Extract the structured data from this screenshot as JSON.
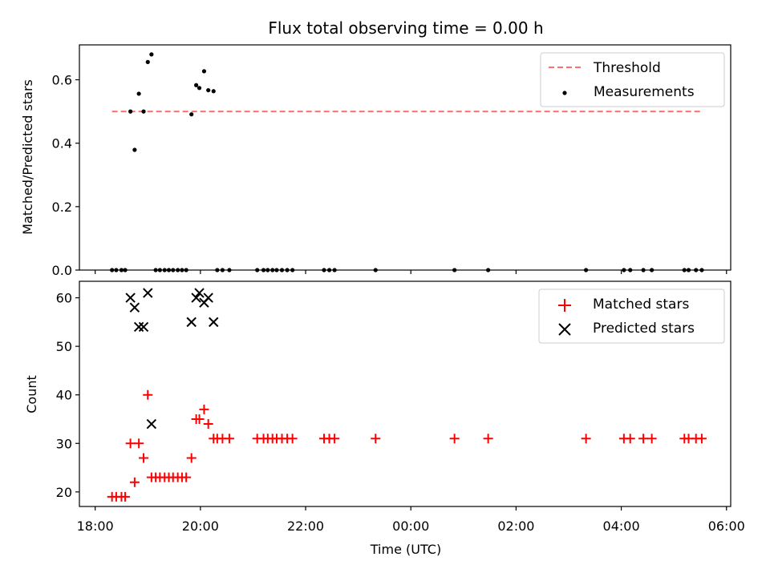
{
  "title": "Flux total observing time = 0.00 h",
  "chart_data": [
    {
      "type": "scatter",
      "ylabel": "Matched/Predicted stars",
      "ylim": [
        0,
        0.71
      ],
      "yticks": [
        "0.0",
        "0.2",
        "0.4",
        "0.6"
      ],
      "ytick_values": [
        0.0,
        0.2,
        0.4,
        0.6
      ],
      "legend_position": "top-right",
      "legend": [
        "Threshold",
        "Measurements"
      ],
      "colors": {
        "threshold": "#ff6f6f",
        "measurements": "#000000"
      },
      "threshold": {
        "name": "Threshold",
        "y": 0.5,
        "x_start": 18.32,
        "x_end": 29.55
      },
      "series": [
        {
          "name": "Measurements",
          "points": [
            [
              18.32,
              0
            ],
            [
              18.4,
              0
            ],
            [
              18.5,
              0
            ],
            [
              18.57,
              0
            ],
            [
              18.67,
              0.5
            ],
            [
              18.75,
              0.379
            ],
            [
              18.83,
              0.556
            ],
            [
              18.92,
              0.5
            ],
            [
              19.0,
              0.656
            ],
            [
              19.07,
              0.68
            ],
            [
              19.15,
              0
            ],
            [
              19.23,
              0
            ],
            [
              19.32,
              0
            ],
            [
              19.4,
              0
            ],
            [
              19.48,
              0
            ],
            [
              19.57,
              0
            ],
            [
              19.65,
              0
            ],
            [
              19.73,
              0
            ],
            [
              19.83,
              0.491
            ],
            [
              19.92,
              0.583
            ],
            [
              19.98,
              0.574
            ],
            [
              20.07,
              0.627
            ],
            [
              20.15,
              0.567
            ],
            [
              20.25,
              0.564
            ],
            [
              20.32,
              0
            ],
            [
              20.42,
              0
            ],
            [
              20.55,
              0
            ],
            [
              21.08,
              0
            ],
            [
              21.2,
              0
            ],
            [
              21.28,
              0
            ],
            [
              21.37,
              0
            ],
            [
              21.45,
              0
            ],
            [
              21.55,
              0
            ],
            [
              21.65,
              0
            ],
            [
              21.75,
              0
            ],
            [
              22.35,
              0
            ],
            [
              22.45,
              0
            ],
            [
              22.55,
              0
            ],
            [
              23.33,
              0
            ],
            [
              24.83,
              0
            ],
            [
              25.47,
              0
            ],
            [
              27.33,
              0
            ],
            [
              28.05,
              0
            ],
            [
              28.17,
              0
            ],
            [
              28.42,
              0
            ],
            [
              28.58,
              0
            ],
            [
              29.2,
              0
            ],
            [
              29.28,
              0
            ],
            [
              29.42,
              0
            ],
            [
              29.53,
              0
            ]
          ]
        }
      ]
    },
    {
      "type": "scatter",
      "xlabel": "Time (UTC)",
      "ylabel": "Count",
      "xlim": [
        17.7,
        30.08
      ],
      "ylim": [
        17,
        63.4
      ],
      "xticks": [
        "18:00",
        "20:00",
        "22:00",
        "00:00",
        "02:00",
        "04:00",
        "06:00"
      ],
      "xtick_values": [
        18,
        20,
        22,
        24,
        26,
        28,
        30
      ],
      "yticks": [
        "20",
        "30",
        "40",
        "50",
        "60"
      ],
      "ytick_values": [
        20,
        30,
        40,
        50,
        60
      ],
      "legend_position": "top-right",
      "legend": [
        "Matched stars",
        "Predicted stars"
      ],
      "colors": {
        "matched": "#ff0000",
        "predicted": "#000000"
      },
      "series": [
        {
          "name": "Matched stars",
          "points": [
            [
              18.32,
              19
            ],
            [
              18.4,
              19
            ],
            [
              18.5,
              19
            ],
            [
              18.57,
              19
            ],
            [
              18.67,
              30
            ],
            [
              18.75,
              22
            ],
            [
              18.83,
              30
            ],
            [
              18.92,
              27
            ],
            [
              19.0,
              40
            ],
            [
              19.07,
              23
            ],
            [
              19.15,
              23
            ],
            [
              19.23,
              23
            ],
            [
              19.32,
              23
            ],
            [
              19.4,
              23
            ],
            [
              19.48,
              23
            ],
            [
              19.57,
              23
            ],
            [
              19.65,
              23
            ],
            [
              19.73,
              23
            ],
            [
              19.83,
              27
            ],
            [
              19.92,
              35
            ],
            [
              19.98,
              35
            ],
            [
              20.07,
              37
            ],
            [
              20.15,
              34
            ],
            [
              20.25,
              31
            ],
            [
              20.32,
              31
            ],
            [
              20.42,
              31
            ],
            [
              20.55,
              31
            ],
            [
              21.08,
              31
            ],
            [
              21.2,
              31
            ],
            [
              21.28,
              31
            ],
            [
              21.37,
              31
            ],
            [
              21.45,
              31
            ],
            [
              21.55,
              31
            ],
            [
              21.65,
              31
            ],
            [
              21.75,
              31
            ],
            [
              22.35,
              31
            ],
            [
              22.45,
              31
            ],
            [
              22.55,
              31
            ],
            [
              23.33,
              31
            ],
            [
              24.83,
              31
            ],
            [
              25.47,
              31
            ],
            [
              27.33,
              31
            ],
            [
              28.05,
              31
            ],
            [
              28.17,
              31
            ],
            [
              28.42,
              31
            ],
            [
              28.58,
              31
            ],
            [
              29.2,
              31
            ],
            [
              29.28,
              31
            ],
            [
              29.42,
              31
            ],
            [
              29.53,
              31
            ]
          ]
        },
        {
          "name": "Predicted stars",
          "points": [
            [
              18.67,
              60
            ],
            [
              18.75,
              58
            ],
            [
              18.83,
              54
            ],
            [
              18.92,
              54
            ],
            [
              19.0,
              61
            ],
            [
              19.07,
              34
            ],
            [
              19.83,
              55
            ],
            [
              19.92,
              60
            ],
            [
              19.98,
              61
            ],
            [
              20.07,
              59
            ],
            [
              20.15,
              60
            ],
            [
              20.25,
              55
            ]
          ]
        }
      ]
    }
  ]
}
